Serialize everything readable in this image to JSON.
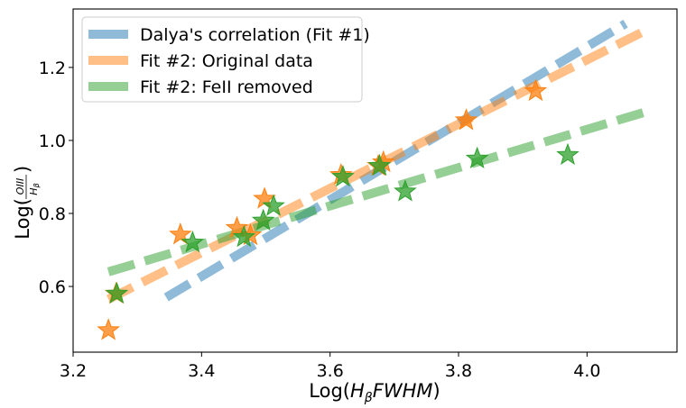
{
  "chart_data": {
    "type": "scatter",
    "xlabel_prefix": "Log(",
    "xlabel_main": "H",
    "xlabel_sub": "β",
    "xlabel_rest": "FWHM",
    "xlabel_suffix": ")",
    "ylabel_prefix": "Log(",
    "ylabel_num": "OIII",
    "ylabel_den_main": "H",
    "ylabel_den_sub": "β",
    "ylabel_suffix": ")",
    "xlim": [
      3.2,
      4.14
    ],
    "ylim": [
      0.42,
      1.36
    ],
    "xticks": [
      "3.2",
      "3.4",
      "3.6",
      "3.8",
      "4.0"
    ],
    "xtick_values": [
      3.2,
      3.4,
      3.6,
      3.8,
      4.0
    ],
    "yticks": [
      "0.6",
      "0.8",
      "1.0",
      "1.2"
    ],
    "ytick_values": [
      0.6,
      0.8,
      1.0,
      1.2
    ],
    "legend_position": "top-left",
    "lines": [
      {
        "name": "Dalya's correlation (Fit #1)",
        "color": "#1f77b4",
        "x": [
          3.345,
          4.06
        ],
        "y": [
          0.57,
          1.32
        ]
      },
      {
        "name": "Fit #2: Original data",
        "color": "#ff7f0e",
        "x": [
          3.255,
          4.09
        ],
        "y": [
          0.565,
          1.3
        ]
      },
      {
        "name": "Fit #2: FeII removed",
        "color": "#2ca02c",
        "x": [
          3.255,
          4.095
        ],
        "y": [
          0.64,
          1.08
        ]
      }
    ],
    "scatter": [
      {
        "color": "#ff7f0e",
        "x": [
          3.255,
          3.267,
          3.367,
          3.455,
          3.476,
          3.498,
          3.617,
          3.675,
          3.683,
          3.812,
          3.92
        ],
        "y": [
          0.48,
          0.58,
          0.742,
          0.76,
          0.74,
          0.84,
          0.905,
          0.93,
          0.94,
          1.055,
          1.135
        ]
      },
      {
        "color": "#2ca02c",
        "x": [
          3.268,
          3.386,
          3.466,
          3.496,
          3.512,
          3.62,
          3.677,
          3.717,
          3.829,
          3.97
        ],
        "y": [
          0.58,
          0.72,
          0.735,
          0.78,
          0.82,
          0.9,
          0.93,
          0.86,
          0.95,
          0.96
        ]
      }
    ]
  }
}
